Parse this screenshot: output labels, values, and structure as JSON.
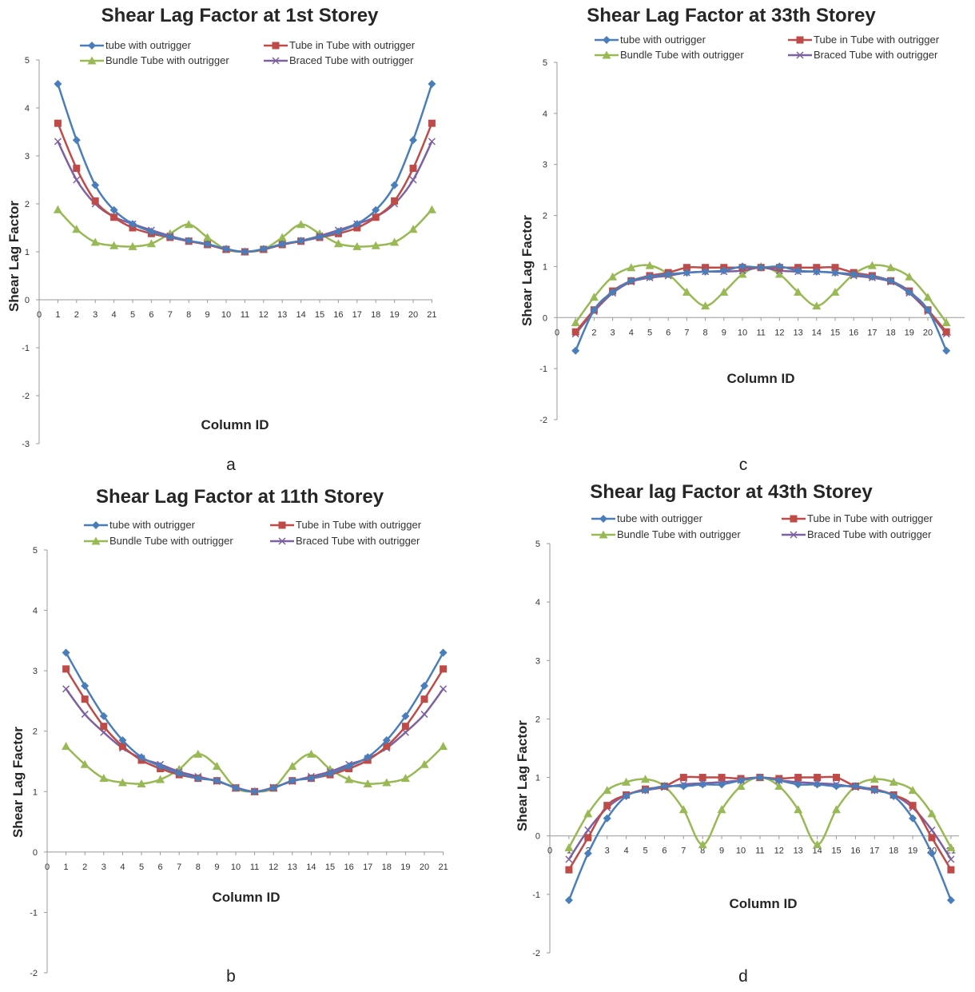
{
  "colors": {
    "tube with outrigger": "#4a7ebb",
    "Tube in Tube with outrigger": "#be4b48",
    "Bundle Tube with outrigger": "#98b954",
    "Braced Tube with outrigger": "#7d60a0",
    "axis": "#999999"
  },
  "chart_data": [
    {
      "id": "a",
      "type": "line",
      "caption": "a",
      "title": "Shear Lag  Factor at 1st Storey",
      "xlabel": "Column ID",
      "ylabel": "Shear Lag Factor",
      "ylim": [
        -3,
        5
      ],
      "yticks": [
        "-3",
        "-2",
        "-1",
        "0",
        "1",
        "2",
        "3",
        "4",
        "5"
      ],
      "xlim": [
        0,
        21
      ],
      "xticks": [
        "0",
        "1",
        "2",
        "3",
        "4",
        "5",
        "6",
        "7",
        "8",
        "9",
        "10",
        "11",
        "12",
        "13",
        "14",
        "15",
        "16",
        "17",
        "18",
        "19",
        "20",
        "21"
      ],
      "grid": false,
      "legend_position": "top",
      "x": [
        1,
        2,
        3,
        4,
        5,
        6,
        7,
        8,
        9,
        10,
        11,
        12,
        13,
        14,
        15,
        16,
        17,
        18,
        19,
        20,
        21
      ],
      "series": [
        {
          "name": "tube with outrigger",
          "marker": "diamond",
          "values": [
            4.5,
            3.33,
            2.39,
            1.87,
            1.58,
            1.42,
            1.31,
            1.23,
            1.16,
            1.06,
            1.0,
            1.06,
            1.16,
            1.23,
            1.31,
            1.42,
            1.58,
            1.87,
            2.39,
            3.33,
            4.5
          ]
        },
        {
          "name": "Tube in Tube with outrigger",
          "marker": "square",
          "values": [
            3.68,
            2.74,
            2.06,
            1.72,
            1.5,
            1.38,
            1.3,
            1.22,
            1.15,
            1.05,
            1.0,
            1.05,
            1.15,
            1.22,
            1.3,
            1.38,
            1.5,
            1.72,
            2.06,
            2.74,
            3.68
          ]
        },
        {
          "name": "Bundle Tube with outrigger",
          "marker": "triangle",
          "values": [
            1.88,
            1.47,
            1.2,
            1.13,
            1.11,
            1.17,
            1.38,
            1.57,
            1.3,
            1.05,
            1.0,
            1.05,
            1.3,
            1.57,
            1.38,
            1.17,
            1.11,
            1.13,
            1.2,
            1.47,
            1.88
          ]
        },
        {
          "name": "Braced Tube with outrigger",
          "marker": "x",
          "values": [
            3.3,
            2.5,
            2.0,
            1.73,
            1.58,
            1.45,
            1.33,
            1.23,
            1.15,
            1.05,
            1.0,
            1.05,
            1.15,
            1.23,
            1.33,
            1.45,
            1.58,
            1.73,
            2.0,
            2.5,
            3.3
          ]
        }
      ]
    },
    {
      "id": "b",
      "type": "line",
      "caption": "b",
      "title": "Shear Lag Factor at 11th  Storey",
      "xlabel": "Column ID",
      "ylabel": "Shear Lag Factor",
      "ylim": [
        -2,
        5
      ],
      "yticks": [
        "-2",
        "-1",
        "0",
        "1",
        "2",
        "3",
        "4",
        "5"
      ],
      "xlim": [
        0,
        21
      ],
      "xticks": [
        "0",
        "1",
        "2",
        "3",
        "4",
        "5",
        "6",
        "7",
        "8",
        "9",
        "10",
        "11",
        "12",
        "13",
        "14",
        "15",
        "16",
        "17",
        "18",
        "19",
        "20",
        "21"
      ],
      "grid": false,
      "legend_position": "top",
      "x": [
        1,
        2,
        3,
        4,
        5,
        6,
        7,
        8,
        9,
        10,
        11,
        12,
        13,
        14,
        15,
        16,
        17,
        18,
        19,
        20,
        21
      ],
      "series": [
        {
          "name": "tube with outrigger",
          "marker": "diamond",
          "values": [
            3.3,
            2.75,
            2.25,
            1.85,
            1.57,
            1.42,
            1.3,
            1.22,
            1.18,
            1.06,
            1.0,
            1.06,
            1.18,
            1.22,
            1.3,
            1.42,
            1.57,
            1.85,
            2.25,
            2.75,
            3.3
          ]
        },
        {
          "name": "Tube in Tube with outrigger",
          "marker": "square",
          "values": [
            3.03,
            2.53,
            2.08,
            1.75,
            1.52,
            1.38,
            1.28,
            1.22,
            1.18,
            1.06,
            1.0,
            1.06,
            1.18,
            1.22,
            1.28,
            1.38,
            1.52,
            1.75,
            2.08,
            2.53,
            3.03
          ]
        },
        {
          "name": "Bundle Tube with outrigger",
          "marker": "triangle",
          "values": [
            1.75,
            1.45,
            1.22,
            1.15,
            1.13,
            1.2,
            1.37,
            1.62,
            1.42,
            1.06,
            1.0,
            1.06,
            1.42,
            1.62,
            1.37,
            1.2,
            1.13,
            1.15,
            1.22,
            1.45,
            1.75
          ]
        },
        {
          "name": "Braced Tube with outrigger",
          "marker": "x",
          "values": [
            2.7,
            2.28,
            1.98,
            1.72,
            1.55,
            1.45,
            1.33,
            1.25,
            1.17,
            1.07,
            1.0,
            1.07,
            1.17,
            1.25,
            1.33,
            1.45,
            1.55,
            1.72,
            1.98,
            2.28,
            2.7
          ]
        }
      ]
    },
    {
      "id": "c",
      "type": "line",
      "caption": "c",
      "title": "Shear Lag Factor at 33th  Storey",
      "xlabel": "Column ID",
      "ylabel": "Shear Lag Factor",
      "ylim": [
        -2,
        5
      ],
      "yticks": [
        "-2",
        "-1",
        "0",
        "1",
        "2",
        "3",
        "4",
        "5"
      ],
      "xlim": [
        0,
        21
      ],
      "xticks": [
        "0",
        "1",
        "2",
        "3",
        "4",
        "5",
        "6",
        "7",
        "8",
        "9",
        "10",
        "11",
        "12",
        "13",
        "14",
        "15",
        "16",
        "17",
        "18",
        "19",
        "20",
        "21"
      ],
      "grid": false,
      "legend_position": "top",
      "x": [
        1,
        2,
        3,
        4,
        5,
        6,
        7,
        8,
        9,
        10,
        11,
        12,
        13,
        14,
        15,
        16,
        17,
        18,
        19,
        20,
        21
      ],
      "series": [
        {
          "name": "tube with outrigger",
          "marker": "diamond",
          "values": [
            -0.65,
            0.15,
            0.5,
            0.72,
            0.8,
            0.85,
            0.88,
            0.9,
            0.92,
            1.0,
            0.98,
            1.0,
            0.92,
            0.9,
            0.88,
            0.85,
            0.8,
            0.72,
            0.5,
            0.15,
            -0.65
          ]
        },
        {
          "name": "Tube in Tube with outrigger",
          "marker": "square",
          "values": [
            -0.28,
            0.15,
            0.52,
            0.72,
            0.82,
            0.88,
            0.98,
            0.98,
            0.98,
            0.98,
            0.98,
            0.98,
            0.98,
            0.98,
            0.98,
            0.88,
            0.82,
            0.72,
            0.52,
            0.15,
            -0.28
          ]
        },
        {
          "name": "Bundle Tube with outrigger",
          "marker": "triangle",
          "values": [
            -0.1,
            0.4,
            0.8,
            0.98,
            1.02,
            0.85,
            0.5,
            0.23,
            0.5,
            0.85,
            1.0,
            0.85,
            0.5,
            0.23,
            0.5,
            0.85,
            1.02,
            0.98,
            0.8,
            0.4,
            -0.1
          ]
        },
        {
          "name": "Braced Tube with outrigger",
          "marker": "x",
          "values": [
            -0.32,
            0.12,
            0.48,
            0.7,
            0.78,
            0.82,
            0.88,
            0.9,
            0.9,
            0.92,
            0.98,
            0.92,
            0.9,
            0.9,
            0.88,
            0.82,
            0.78,
            0.7,
            0.48,
            0.12,
            -0.32
          ]
        }
      ]
    },
    {
      "id": "d",
      "type": "line",
      "caption": "d",
      "title": "Shear lag Factor at 43th Storey",
      "xlabel": "Column ID",
      "ylabel": "Shear Lag Factor",
      "ylim": [
        -2,
        5
      ],
      "yticks": [
        "-2",
        "-1",
        "0",
        "1",
        "2",
        "3",
        "4",
        "5"
      ],
      "xlim": [
        0,
        21
      ],
      "xticks": [
        "0",
        "1",
        "2",
        "3",
        "4",
        "5",
        "6",
        "7",
        "8",
        "9",
        "10",
        "11",
        "12",
        "13",
        "14",
        "15",
        "16",
        "17",
        "18",
        "19",
        "20",
        "21"
      ],
      "grid": false,
      "legend_position": "top",
      "x": [
        1,
        2,
        3,
        4,
        5,
        6,
        7,
        8,
        9,
        10,
        11,
        12,
        13,
        14,
        15,
        16,
        17,
        18,
        19,
        20,
        21
      ],
      "series": [
        {
          "name": "tube with outrigger",
          "marker": "diamond",
          "values": [
            -1.1,
            -0.3,
            0.3,
            0.68,
            0.78,
            0.85,
            0.85,
            0.88,
            0.88,
            0.95,
            1.0,
            0.95,
            0.88,
            0.88,
            0.85,
            0.85,
            0.78,
            0.68,
            0.3,
            -0.3,
            -1.1
          ]
        },
        {
          "name": "Tube in Tube with outrigger",
          "marker": "square",
          "values": [
            -0.58,
            -0.03,
            0.52,
            0.7,
            0.8,
            0.85,
            1.0,
            1.0,
            1.0,
            0.98,
            1.0,
            0.98,
            1.0,
            1.0,
            1.0,
            0.85,
            0.8,
            0.7,
            0.52,
            -0.03,
            -0.58
          ]
        },
        {
          "name": "Bundle Tube with outrigger",
          "marker": "triangle",
          "values": [
            -0.2,
            0.38,
            0.78,
            0.92,
            0.97,
            0.85,
            0.45,
            -0.15,
            0.45,
            0.85,
            1.0,
            0.85,
            0.45,
            -0.15,
            0.45,
            0.85,
            0.97,
            0.92,
            0.78,
            0.38,
            -0.2
          ]
        },
        {
          "name": "Braced Tube with outrigger",
          "marker": "x",
          "values": [
            -0.4,
            0.1,
            0.48,
            0.7,
            0.78,
            0.83,
            0.88,
            0.9,
            0.92,
            0.95,
            1.0,
            0.95,
            0.92,
            0.9,
            0.88,
            0.83,
            0.78,
            0.7,
            0.48,
            0.1,
            -0.4
          ]
        }
      ]
    }
  ]
}
